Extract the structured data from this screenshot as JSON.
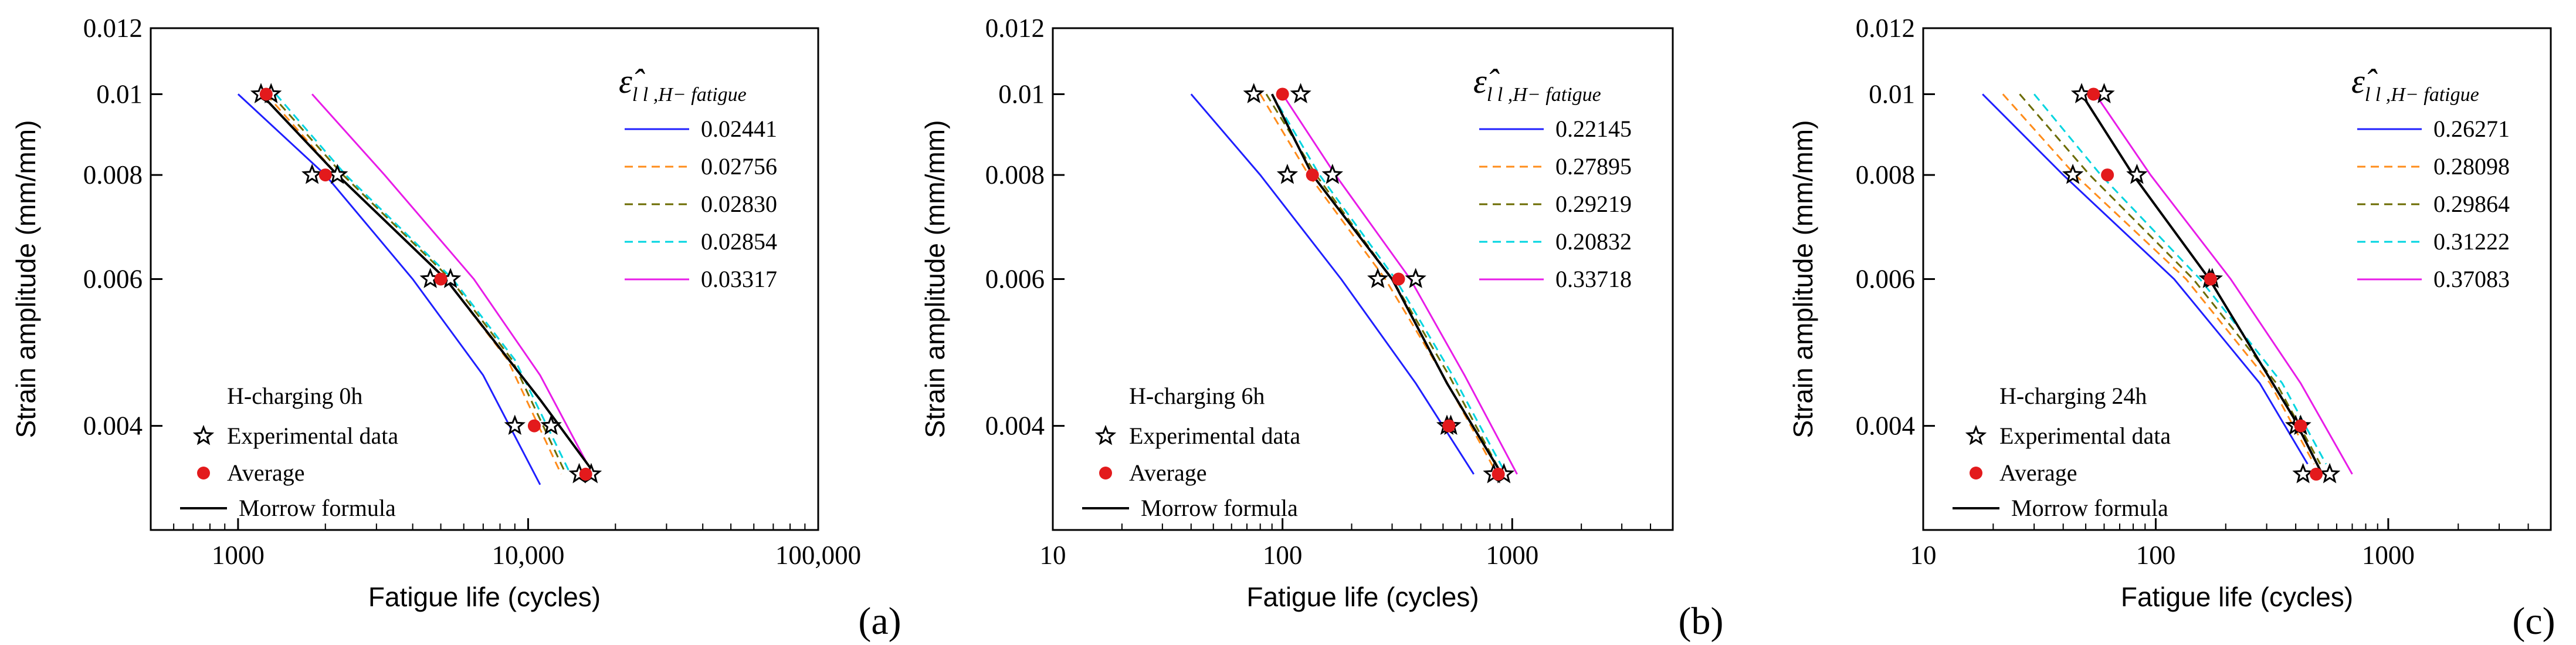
{
  "panels": [
    {
      "letter": "(a)",
      "panel_label": "a",
      "chart_data": {
        "type": "line",
        "title": "",
        "xlabel": "Fatigue life (cycles)",
        "ylabel": "Strain amplitude (mm/mm)",
        "x_scale": "log",
        "y_scale": "log",
        "xlim": [
          500,
          100000
        ],
        "ylim": [
          0.003,
          0.012
        ],
        "x_ticks": [
          1000,
          10000,
          100000
        ],
        "x_tick_labels": [
          "1000",
          "10,000",
          "100,000"
        ],
        "y_ticks": [
          0.004,
          0.006,
          0.008,
          0.01,
          0.012
        ],
        "y_tick_labels": [
          "0.004",
          "0.006",
          "0.008",
          "0.01",
          "0.012"
        ],
        "legend_title_symbol": "ε̂",
        "legend_title_subscript": "l l ,H− fatigue",
        "series": [
          {
            "name": "0.02441",
            "color": "#1f1fff",
            "dash": "solid",
            "x": [
              1000,
              2000,
              4000,
              7000,
              11000
            ],
            "y": [
              0.01,
              0.008,
              0.006,
              0.0046,
              0.0034
            ]
          },
          {
            "name": "0.02756",
            "color": "#ff8c1a",
            "dash": "dashed",
            "x": [
              1250,
              2200,
              5200,
              8500,
              13000
            ],
            "y": [
              0.01,
              0.008,
              0.006,
              0.0048,
              0.0035
            ]
          },
          {
            "name": "0.02830",
            "color": "#6b6b00",
            "dash": "dashed",
            "x": [
              1300,
              2300,
              5400,
              8800,
              13500
            ],
            "y": [
              0.01,
              0.008,
              0.006,
              0.0048,
              0.0035
            ]
          },
          {
            "name": "0.02854",
            "color": "#00d5e0",
            "dash": "dashed",
            "x": [
              1350,
              2350,
              5500,
              9000,
              14000
            ],
            "y": [
              0.01,
              0.008,
              0.006,
              0.0048,
              0.0035
            ]
          },
          {
            "name": "0.03317",
            "color": "#e81ce8",
            "dash": "solid",
            "x": [
              1800,
              3200,
              6500,
              11000,
              16000
            ],
            "y": [
              0.01,
              0.008,
              0.006,
              0.0046,
              0.0036
            ]
          }
        ],
        "morrow": {
          "name": "Morrow formula",
          "x": [
            1200,
            2200,
            5200,
            11000,
            17000
          ],
          "y": [
            0.01,
            0.008,
            0.006,
            0.0043,
            0.0035
          ]
        },
        "experimental": {
          "name": "Experimental data",
          "x": [
            1200,
            1300,
            1800,
            2200,
            4600,
            5400,
            9000,
            12000,
            15000,
            16500
          ],
          "y": [
            0.01,
            0.01,
            0.008,
            0.008,
            0.006,
            0.006,
            0.004,
            0.004,
            0.0035,
            0.0035
          ]
        },
        "average": {
          "name": "Average",
          "x": [
            1250,
            2000,
            5000,
            10500,
            15800
          ],
          "y": [
            0.01,
            0.008,
            0.006,
            0.004,
            0.0035
          ]
        },
        "annotation": "H-charging 0h",
        "legend_position": "top-right"
      }
    },
    {
      "letter": "(b)",
      "panel_label": "b",
      "chart_data": {
        "type": "line",
        "title": "",
        "xlabel": "Fatigue life (cycles)",
        "ylabel": "Strain amplitude (mm/mm)",
        "x_scale": "log",
        "y_scale": "log",
        "xlim": [
          10,
          5000
        ],
        "ylim": [
          0.003,
          0.012
        ],
        "x_ticks": [
          10,
          100,
          1000
        ],
        "x_tick_labels": [
          "10",
          "100",
          "1000"
        ],
        "y_ticks": [
          0.004,
          0.006,
          0.008,
          0.01,
          0.012
        ],
        "y_tick_labels": [
          "0.004",
          "0.006",
          "0.008",
          "0.01",
          "0.012"
        ],
        "legend_title_symbol": "ε̂",
        "legend_title_subscript": "l l ,H− fatigue",
        "series": [
          {
            "name": "0.22145",
            "color": "#1f1fff",
            "dash": "solid",
            "x": [
              40,
              80,
              180,
              380,
              680
            ],
            "y": [
              0.01,
              0.008,
              0.006,
              0.0045,
              0.0035
            ]
          },
          {
            "name": "0.27895",
            "color": "#ff8c1a",
            "dash": "dashed",
            "x": [
              80,
              130,
              280,
              500,
              860
            ],
            "y": [
              0.01,
              0.008,
              0.006,
              0.0046,
              0.0035
            ]
          },
          {
            "name": "0.29219",
            "color": "#6b6b00",
            "dash": "dashed",
            "x": [
              85,
              140,
              300,
              530,
              900
            ],
            "y": [
              0.01,
              0.008,
              0.006,
              0.0046,
              0.0035
            ]
          },
          {
            "name": "0.20832",
            "color": "#00d5e0",
            "dash": "dashed",
            "x": [
              90,
              145,
              310,
              550,
              940
            ],
            "y": [
              0.01,
              0.008,
              0.006,
              0.0046,
              0.0035
            ]
          },
          {
            "name": "0.33718",
            "color": "#e81ce8",
            "dash": "solid",
            "x": [
              100,
              170,
              360,
              620,
              1050
            ],
            "y": [
              0.01,
              0.008,
              0.006,
              0.0046,
              0.0035
            ]
          }
        ],
        "morrow": {
          "name": "Morrow formula",
          "x": [
            90,
            135,
            300,
            520,
            900
          ],
          "y": [
            0.01,
            0.008,
            0.006,
            0.0045,
            0.0035
          ]
        },
        "experimental": {
          "name": "Experimental data",
          "x": [
            75,
            120,
            105,
            165,
            260,
            380,
            520,
            540,
            830,
            920
          ],
          "y": [
            0.01,
            0.01,
            0.008,
            0.008,
            0.006,
            0.006,
            0.004,
            0.004,
            0.0035,
            0.0035
          ]
        },
        "average": {
          "name": "Average",
          "x": [
            100,
            135,
            320,
            530,
            870
          ],
          "y": [
            0.01,
            0.008,
            0.006,
            0.004,
            0.0035
          ]
        },
        "annotation": "H-charging 6h",
        "legend_position": "top-right"
      }
    },
    {
      "letter": "(c)",
      "panel_label": "c",
      "chart_data": {
        "type": "line",
        "title": "",
        "xlabel": "Fatigue life (cycles)",
        "ylabel": "Strain amplitude (mm/mm)",
        "x_scale": "log",
        "y_scale": "log",
        "xlim": [
          10,
          5000
        ],
        "ylim": [
          0.003,
          0.012
        ],
        "x_ticks": [
          10,
          100,
          1000
        ],
        "x_tick_labels": [
          "10",
          "100",
          "1000"
        ],
        "y_ticks": [
          0.004,
          0.006,
          0.008,
          0.01,
          0.012
        ],
        "y_tick_labels": [
          "0.004",
          "0.006",
          "0.008",
          "0.01",
          "0.012"
        ],
        "legend_title_symbol": "ε̂",
        "legend_title_subscript": "l l ,H− fatigue",
        "series": [
          {
            "name": "0.26271",
            "color": "#1f1fff",
            "dash": "solid",
            "x": [
              18,
              40,
              120,
              280,
              450
            ],
            "y": [
              0.01,
              0.008,
              0.006,
              0.0045,
              0.0036
            ]
          },
          {
            "name": "0.28098",
            "color": "#ff8c1a",
            "dash": "dashed",
            "x": [
              22,
              45,
              135,
              310,
              480
            ],
            "y": [
              0.01,
              0.008,
              0.006,
              0.0045,
              0.0036
            ]
          },
          {
            "name": "0.29864",
            "color": "#6b6b00",
            "dash": "dashed",
            "x": [
              26,
              52,
              145,
              330,
              510
            ],
            "y": [
              0.01,
              0.008,
              0.006,
              0.0045,
              0.0036
            ]
          },
          {
            "name": "0.31222",
            "color": "#00d5e0",
            "dash": "dashed",
            "x": [
              30,
              58,
              155,
              350,
              540
            ],
            "y": [
              0.01,
              0.008,
              0.006,
              0.0045,
              0.0036
            ]
          },
          {
            "name": "0.37083",
            "color": "#e81ce8",
            "dash": "solid",
            "x": [
              55,
              95,
              210,
              420,
              700
            ],
            "y": [
              0.01,
              0.008,
              0.006,
              0.0045,
              0.0035
            ]
          }
        ],
        "morrow": {
          "name": "Morrow formula",
          "x": [
            48,
            80,
            170,
            390,
            520
          ],
          "y": [
            0.01,
            0.008,
            0.006,
            0.0041,
            0.0035
          ]
        },
        "experimental": {
          "name": "Experimental data",
          "x": [
            48,
            60,
            44,
            83,
            170,
            175,
            400,
            420,
            430,
            560
          ],
          "y": [
            0.01,
            0.01,
            0.008,
            0.008,
            0.006,
            0.006,
            0.004,
            0.004,
            0.0035,
            0.0035
          ]
        },
        "average": {
          "name": "Average",
          "x": [
            54,
            62,
            172,
            420,
            490
          ],
          "y": [
            0.01,
            0.008,
            0.006,
            0.004,
            0.0035
          ]
        },
        "annotation": "H-charging 24h",
        "legend_position": "top-right"
      }
    }
  ]
}
